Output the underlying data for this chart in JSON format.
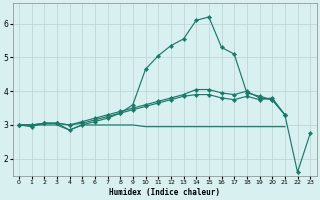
{
  "xlabel": "Humidex (Indice chaleur)",
  "x": [
    0,
    1,
    2,
    3,
    4,
    5,
    6,
    7,
    8,
    9,
    10,
    11,
    12,
    13,
    14,
    15,
    16,
    17,
    18,
    19,
    20,
    21,
    22,
    23
  ],
  "line_peak": [
    3.0,
    2.95,
    3.05,
    3.05,
    2.85,
    3.0,
    3.1,
    3.2,
    3.35,
    3.6,
    4.65,
    5.05,
    5.35,
    5.55,
    6.1,
    6.2,
    5.3,
    5.1,
    3.95,
    3.85,
    3.75,
    3.3,
    null,
    null
  ],
  "line_upper": [
    3.0,
    3.0,
    3.05,
    3.05,
    3.0,
    3.1,
    3.2,
    3.3,
    3.4,
    3.5,
    3.6,
    3.7,
    3.8,
    3.9,
    4.05,
    4.05,
    3.95,
    3.9,
    4.0,
    3.8,
    3.75,
    3.3,
    null,
    null
  ],
  "line_mid": [
    3.0,
    3.0,
    3.05,
    3.05,
    3.0,
    3.05,
    3.15,
    3.25,
    3.35,
    3.45,
    3.55,
    3.65,
    3.75,
    3.85,
    3.9,
    3.9,
    3.8,
    3.75,
    3.85,
    3.75,
    3.8,
    3.3,
    1.6,
    2.75
  ],
  "line_flat": [
    3.0,
    3.0,
    3.0,
    3.0,
    2.85,
    3.0,
    3.0,
    3.0,
    3.0,
    3.0,
    2.95,
    2.95,
    2.95,
    2.95,
    2.95,
    2.95,
    2.95,
    2.95,
    2.95,
    2.95,
    2.95,
    2.95,
    null,
    null
  ],
  "color": "#1a7a6a",
  "bg_color": "#d8f0f0",
  "grid_color": "#c0d8d8",
  "ylim": [
    1.5,
    6.6
  ],
  "xlim": [
    -0.5,
    23.5
  ],
  "yticks": [
    2,
    3,
    4,
    5,
    6
  ],
  "xticks": [
    0,
    1,
    2,
    3,
    4,
    5,
    6,
    7,
    8,
    9,
    10,
    11,
    12,
    13,
    14,
    15,
    16,
    17,
    18,
    19,
    20,
    21,
    22,
    23
  ]
}
